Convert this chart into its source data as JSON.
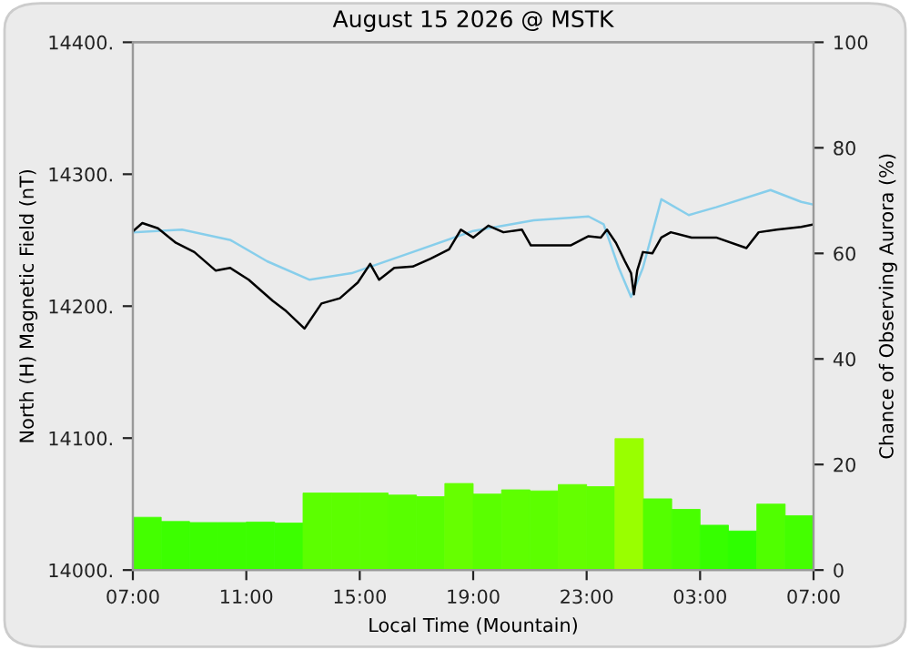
{
  "chart_data": {
    "type": "line",
    "title": "August 15 2026 @ MSTK",
    "xlabel": "Local Time (Mountain)",
    "ylabel": "North (H) Magnetic Field (nT)",
    "y2label": "Chance of Observing Aurora (%)",
    "xlim": [
      "2026-08-15T07:00",
      "2026-08-16T07:00"
    ],
    "xticks": [
      {
        "value": "2026-08-15T07:00",
        "label": "07:00"
      },
      {
        "value": "2026-08-15T11:00",
        "label": "11:00"
      },
      {
        "value": "2026-08-15T15:00",
        "label": "15:00"
      },
      {
        "value": "2026-08-15T19:00",
        "label": "19:00"
      },
      {
        "value": "2026-08-15T23:00",
        "label": "23:00"
      },
      {
        "value": "2026-08-16T03:00",
        "label": "03:00"
      },
      {
        "value": "2026-08-16T07:00",
        "label": "07:00"
      }
    ],
    "ylim": [
      14000,
      14400
    ],
    "yticks": [
      {
        "value": 14000,
        "label": "14000."
      },
      {
        "value": 14100,
        "label": "14100."
      },
      {
        "value": 14200,
        "label": "14200."
      },
      {
        "value": 14300,
        "label": "14300."
      },
      {
        "value": 14400,
        "label": "14400."
      }
    ],
    "y2lim": [
      0,
      100
    ],
    "y2ticks": [
      0,
      20,
      40,
      60,
      80,
      100
    ],
    "series": [
      {
        "type": "bar",
        "axis": "y2",
        "x": [
          "2026-08-15T07:30",
          "2026-08-15T08:30",
          "2026-08-15T09:30",
          "2026-08-15T10:30",
          "2026-08-15T11:30",
          "2026-08-15T12:30",
          "2026-08-15T13:30",
          "2026-08-15T14:30",
          "2026-08-15T15:30",
          "2026-08-15T16:30",
          "2026-08-15T17:30",
          "2026-08-15T18:30",
          "2026-08-15T19:30",
          "2026-08-15T20:30",
          "2026-08-15T21:30",
          "2026-08-15T22:30",
          "2026-08-15T23:30",
          "2026-08-16T00:30",
          "2026-08-16T01:30",
          "2026-08-16T02:30",
          "2026-08-16T03:30",
          "2026-08-16T04:30",
          "2026-08-16T05:30",
          "2026-08-16T06:30"
        ],
        "values": [
          10.0,
          9.2,
          9.0,
          9.0,
          9.1,
          8.9,
          14.6,
          14.6,
          14.6,
          14.2,
          13.9,
          16.4,
          14.4,
          15.2,
          15.0,
          16.2,
          15.8,
          24.9,
          13.5,
          11.5,
          8.5,
          7.4,
          12.5,
          10.3
        ],
        "colors": [
          "#44ff00",
          "#3cff00",
          "#3cff00",
          "#3cff00",
          "#3cff00",
          "#3cff00",
          "#5cff00",
          "#5cff00",
          "#5cff00",
          "#58ff00",
          "#58ff00",
          "#66ff00",
          "#5aff00",
          "#5eff00",
          "#5cff00",
          "#64ff00",
          "#62ff00",
          "#99ff00",
          "#54ff00",
          "#48ff00",
          "#36ff00",
          "#2eff00",
          "#50ff00",
          "#44ff00"
        ]
      },
      {
        "axis": "y",
        "color": "#87ceeb",
        "x": [
          "2026-08-15T07:01",
          "2026-08-15T08:44",
          "2026-08-15T10:27",
          "2026-08-15T11:44",
          "2026-08-15T13:14",
          "2026-08-15T14:43",
          "2026-08-15T16:52",
          "2026-08-15T19:00",
          "2026-08-15T21:08",
          "2026-08-15T23:04",
          "2026-08-15T23:36",
          "2026-08-16T00:08",
          "2026-08-16T00:34",
          "2026-08-16T00:59",
          "2026-08-16T01:38",
          "2026-08-16T02:36",
          "2026-08-16T03:34",
          "2026-08-16T05:29",
          "2026-08-16T06:34",
          "2026-08-16T07:00"
        ],
        "values": [
          14256,
          14258,
          14250,
          14234,
          14220,
          14225,
          14241,
          14257,
          14265,
          14268,
          14262,
          14229,
          14207,
          14229,
          14281,
          14269,
          14275,
          14288,
          14279,
          14277
        ]
      },
      {
        "axis": "y",
        "color": "#000000",
        "x": [
          "2026-08-15T07:01",
          "2026-08-15T07:20",
          "2026-08-15T07:53",
          "2026-08-15T08:31",
          "2026-08-15T09:10",
          "2026-08-15T09:55",
          "2026-08-15T10:26",
          "2026-08-15T11:05",
          "2026-08-15T11:56",
          "2026-08-15T12:22",
          "2026-08-15T13:03",
          "2026-08-15T13:39",
          "2026-08-15T14:18",
          "2026-08-15T14:56",
          "2026-08-15T15:22",
          "2026-08-15T15:41",
          "2026-08-15T16:13",
          "2026-08-15T16:52",
          "2026-08-15T17:30",
          "2026-08-15T18:09",
          "2026-08-15T18:34",
          "2026-08-15T19:00",
          "2026-08-15T19:32",
          "2026-08-15T20:04",
          "2026-08-15T20:43",
          "2026-08-15T21:02",
          "2026-08-15T21:34",
          "2026-08-15T22:26",
          "2026-08-15T23:04",
          "2026-08-15T23:30",
          "2026-08-15T23:43",
          "2026-08-16T00:02",
          "2026-08-16T00:21",
          "2026-08-16T00:34",
          "2026-08-16T00:40",
          "2026-08-16T00:47",
          "2026-08-16T00:59",
          "2026-08-16T01:19",
          "2026-08-16T01:38",
          "2026-08-16T01:58",
          "2026-08-16T02:42",
          "2026-08-16T03:34",
          "2026-08-16T04:38",
          "2026-08-16T05:04",
          "2026-08-16T05:42",
          "2026-08-16T06:34",
          "2026-08-16T07:00"
        ],
        "values": [
          14257,
          14263,
          14259,
          14248,
          14241,
          14227,
          14229,
          14220,
          14204,
          14197,
          14183,
          14202,
          14206,
          14218,
          14232,
          14220,
          14229,
          14230,
          14236,
          14243,
          14258,
          14252,
          14261,
          14256,
          14258,
          14246,
          14246,
          14246,
          14253,
          14252,
          14258,
          14248,
          14234,
          14225,
          14209,
          14227,
          14241,
          14240,
          14252,
          14256,
          14252,
          14252,
          14244,
          14256,
          14258,
          14260,
          14262
        ]
      }
    ]
  }
}
